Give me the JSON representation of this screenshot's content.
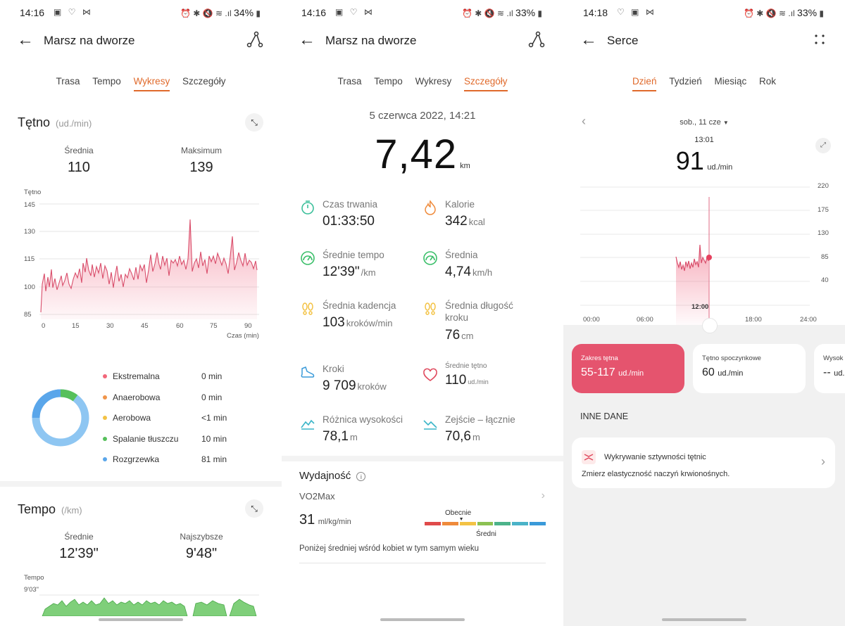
{
  "s1": {
    "status": {
      "time": "14:16",
      "battery": "34%"
    },
    "title": "Marsz na dworze",
    "tabs": [
      "Trasa",
      "Tempo",
      "Wykresy",
      "Szczegóły"
    ],
    "hr": {
      "title": "Tętno",
      "unit": "(ud./min)",
      "avg_label": "Średnia",
      "avg": "110",
      "max_label": "Maksimum",
      "max": "139",
      "y_title": "Tętno",
      "y_ticks": [
        "145",
        "130",
        "115",
        "100",
        "85"
      ],
      "x_ticks": [
        "0",
        "15",
        "30",
        "45",
        "60",
        "75",
        "90"
      ],
      "x_title": "Czas (min)"
    },
    "zones": [
      {
        "name": "Ekstremalna",
        "value": "0 min",
        "color": "#f2677a"
      },
      {
        "name": "Anaerobowa",
        "value": "0 min",
        "color": "#f0954a"
      },
      {
        "name": "Aerobowa",
        "value": "<1 min",
        "color": "#f3c244"
      },
      {
        "name": "Spalanie tłuszczu",
        "value": "10 min",
        "color": "#56c05b"
      },
      {
        "name": "Rozgrzewka",
        "value": "81 min",
        "color": "#5aa6ea"
      }
    ],
    "pace": {
      "title": "Tempo",
      "unit": "(/km)",
      "avg_label": "Średnie",
      "avg": "12'39\"",
      "best_label": "Najszybsze",
      "best": "9'48\"",
      "y_title": "Tempo",
      "y_tick": "9'03\""
    }
  },
  "s2": {
    "status": {
      "time": "14:16",
      "battery": "33%"
    },
    "title": "Marsz na dworze",
    "tabs": [
      "Trasa",
      "Tempo",
      "Wykresy",
      "Szczegóły"
    ],
    "date": "5 czerwca 2022, 14:21",
    "distance": "7,42",
    "distance_unit": "km",
    "metrics": [
      {
        "label": "Czas trwania",
        "value": "01:33:50",
        "unit": "",
        "icon": "stopwatch-icon"
      },
      {
        "label": "Kalorie",
        "value": "342",
        "unit": "kcal",
        "icon": "flame-icon"
      },
      {
        "label": "Średnie tempo",
        "value": "12'39\"",
        "unit": "/km",
        "icon": "speedometer-icon"
      },
      {
        "label": "Średnia",
        "value": "4,74",
        "unit": "km/h",
        "icon": "speedometer-icon"
      },
      {
        "label": "Średnia kadencja",
        "value": "103",
        "unit": "kroków/min",
        "icon": "footprints-icon"
      },
      {
        "label": "Średnia długość kroku",
        "value": "76",
        "unit": "cm",
        "icon": "footprints-icon"
      },
      {
        "label": "Kroki",
        "value": "9 709",
        "unit": "kroków",
        "icon": "shoe-icon"
      },
      {
        "label": "Średnie tętno",
        "value": "110",
        "unit": "ud./min",
        "icon": "heart-icon"
      },
      {
        "label": "Różnica wysokości",
        "value": "78,1",
        "unit": "m",
        "icon": "elevation-icon"
      },
      {
        "label": "Zejście – łącznie",
        "value": "70,6",
        "unit": "m",
        "icon": "descent-icon"
      }
    ],
    "perf": {
      "title": "Wydajność",
      "vo2_label": "VO2Max",
      "vo2": "31",
      "vo2_unit": "ml/kg/min",
      "now_label": "Obecnie",
      "avg_label": "Średni",
      "note": "Poniżej średniej wśród kobiet w tym samym wieku",
      "scale_colors": [
        "#e04a4a",
        "#ef8a3a",
        "#f3c244",
        "#8cc152",
        "#4cb38a",
        "#4ab3c8",
        "#3a9ad9"
      ],
      "level": 0.3
    }
  },
  "s3": {
    "status": {
      "time": "14:18",
      "battery": "33%"
    },
    "title": "Serce",
    "tabs": [
      "Dzień",
      "Tydzień",
      "Miesiąc",
      "Rok"
    ],
    "day": "sob., 11 cze",
    "sel_time": "13:01",
    "sel_value": "91",
    "sel_unit": "ud./min",
    "y_ticks": [
      "220",
      "175",
      "130",
      "85",
      "40"
    ],
    "x_ticks": [
      "00:00",
      "06:00",
      "12:00",
      "18:00",
      "24:00"
    ],
    "cards": [
      {
        "label": "Zakres tętna",
        "value": "55-117",
        "unit": "ud./min"
      },
      {
        "label": "Tętno spoczynkowe",
        "value": "60",
        "unit": "ud./min"
      },
      {
        "label": "Wysok",
        "value": "--",
        "unit": "ud."
      }
    ],
    "other_title": "INNE DANE",
    "other_item": {
      "title": "Wykrywanie sztywności tętnic",
      "desc": "Zmierz elastyczność naczyń krwionośnych."
    }
  }
}
